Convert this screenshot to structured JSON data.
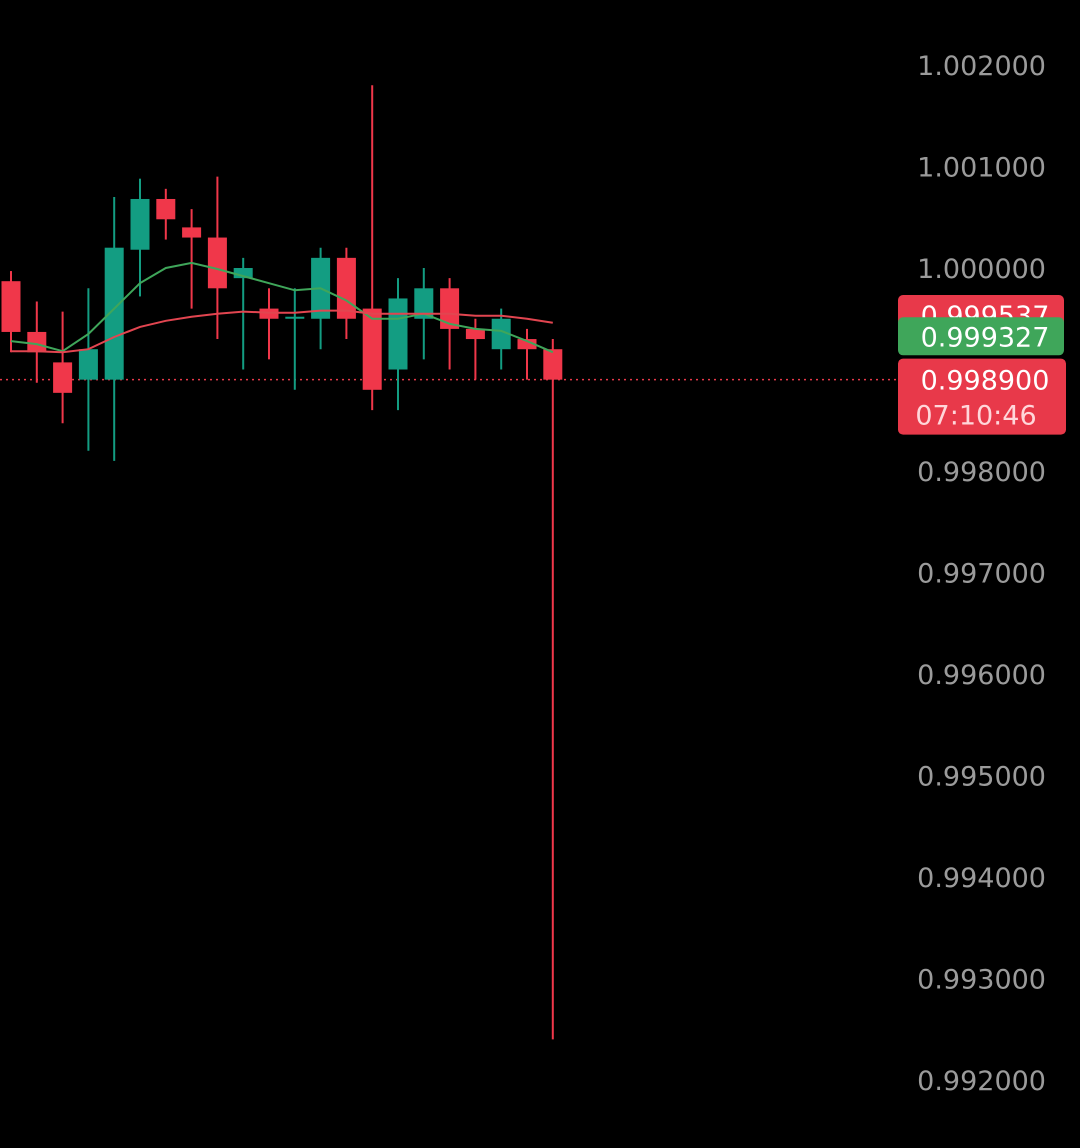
{
  "chart_data": {
    "type": "candlestick",
    "title": "",
    "xlabel": "",
    "ylabel": "",
    "ylim": [
      0.9918,
      1.0026
    ],
    "y_ticks": [
      "1.002000",
      "1.001000",
      "1.000000",
      "0.998000",
      "0.997000",
      "0.996000",
      "0.995000",
      "0.994000",
      "0.993000",
      "0.992000"
    ],
    "y_tick_values": [
      1.002,
      1.001,
      1.0,
      0.998,
      0.997,
      0.996,
      0.995,
      0.994,
      0.993,
      0.992
    ],
    "grid": false,
    "colors": {
      "up": "#139d82",
      "down": "#f0374a",
      "ma_fast": "#3fa65a",
      "ma_slow": "#e24550",
      "background": "#000000",
      "tick_text": "#9b9b9b"
    },
    "candles": [
      {
        "open": 0.99987,
        "close": 0.99937,
        "high": 0.99997,
        "low": 0.99917
      },
      {
        "open": 0.99937,
        "close": 0.99917,
        "high": 0.99967,
        "low": 0.99887
      },
      {
        "open": 0.99907,
        "close": 0.99877,
        "high": 0.99957,
        "low": 0.99847
      },
      {
        "open": 0.9989,
        "close": 0.9992,
        "high": 0.9998,
        "low": 0.9982
      },
      {
        "open": 0.9989,
        "close": 1.0002,
        "high": 1.0007,
        "low": 0.9981
      },
      {
        "open": 1.00018,
        "close": 1.00068,
        "high": 1.00088,
        "low": 0.99972
      },
      {
        "open": 1.00068,
        "close": 1.00048,
        "high": 1.00078,
        "low": 1.00028
      },
      {
        "open": 1.0004,
        "close": 1.0003,
        "high": 1.00058,
        "low": 0.9996
      },
      {
        "open": 1.0003,
        "close": 0.9998,
        "high": 1.0009,
        "low": 0.9993
      },
      {
        "open": 0.9999,
        "close": 1.0,
        "high": 1.0001,
        "low": 0.999
      },
      {
        "open": 0.9996,
        "close": 0.9995,
        "high": 0.9998,
        "low": 0.9991
      },
      {
        "open": 0.9995,
        "close": 0.99952,
        "high": 0.9998,
        "low": 0.9988
      },
      {
        "open": 0.9995,
        "close": 1.0001,
        "high": 1.0002,
        "low": 0.9992
      },
      {
        "open": 1.0001,
        "close": 0.9995,
        "high": 1.0002,
        "low": 0.9993
      },
      {
        "open": 0.9996,
        "close": 0.9988,
        "high": 1.0018,
        "low": 0.9986
      },
      {
        "open": 0.999,
        "close": 0.9997,
        "high": 0.9999,
        "low": 0.9986
      },
      {
        "open": 0.9995,
        "close": 0.9998,
        "high": 1.0,
        "low": 0.9991
      },
      {
        "open": 0.9998,
        "close": 0.9994,
        "high": 0.9999,
        "low": 0.999
      },
      {
        "open": 0.9994,
        "close": 0.9993,
        "high": 0.9995,
        "low": 0.9989
      },
      {
        "open": 0.9992,
        "close": 0.9995,
        "high": 0.9996,
        "low": 0.999
      },
      {
        "open": 0.9993,
        "close": 0.9992,
        "high": 0.9994,
        "low": 0.9989
      },
      {
        "open": 0.9992,
        "close": 0.9989,
        "high": 0.9993,
        "low": 0.9924
      }
    ],
    "series": [
      {
        "values": [
          0.99928,
          0.99925,
          0.99918,
          0.99935,
          0.9996,
          0.99985,
          1.0,
          1.00005,
          0.99999,
          0.99992,
          0.99985,
          0.99978,
          0.9998,
          0.99968,
          0.9995,
          0.9995,
          0.99955,
          0.99945,
          0.9994,
          0.99938,
          0.99928,
          0.99917
        ]
      },
      {
        "values": [
          0.99918,
          0.99918,
          0.99917,
          0.9992,
          0.99932,
          0.99942,
          0.99948,
          0.99952,
          0.99955,
          0.99957,
          0.99956,
          0.99956,
          0.99958,
          0.99958,
          0.99955,
          0.99955,
          0.99955,
          0.99955,
          0.99953,
          0.99953,
          0.9995,
          0.99946
        ]
      }
    ],
    "price_badges": [
      {
        "value": "0.999537",
        "color": "#e8394a",
        "price": 0.999537
      },
      {
        "value": "0.999327",
        "color": "#3fa65a",
        "price": 0.999327
      }
    ],
    "last_price": {
      "value": "0.998900",
      "countdown": "07:10:46",
      "color": "#e8394a",
      "price": 0.9989
    }
  }
}
